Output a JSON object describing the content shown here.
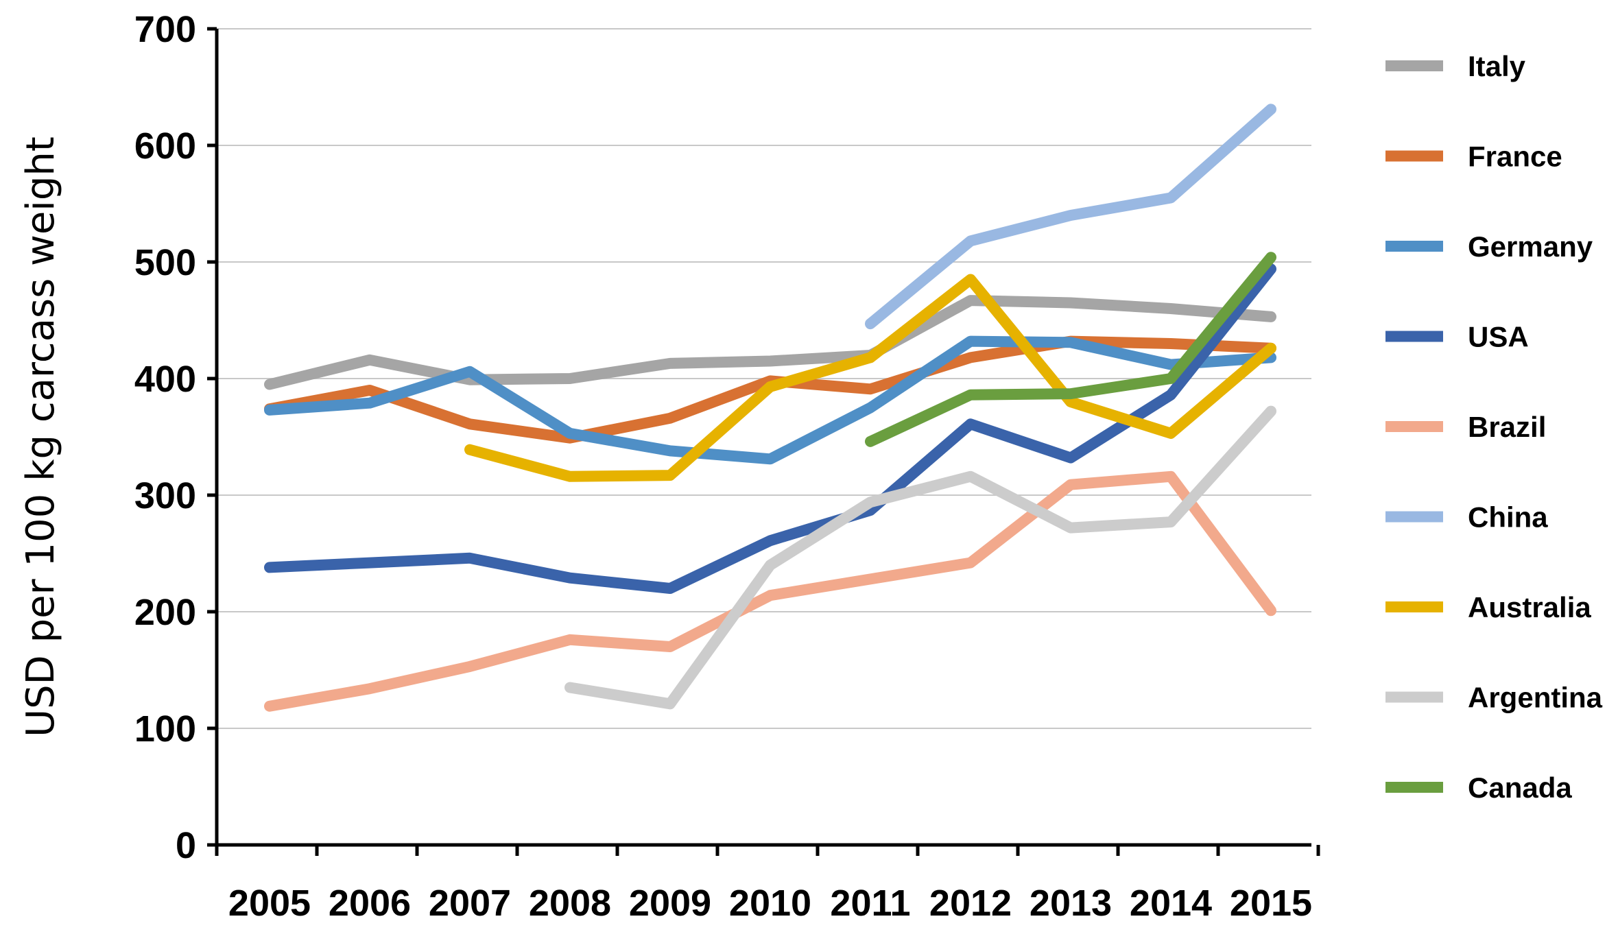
{
  "chart_data": {
    "type": "line",
    "title": "",
    "xlabel": "",
    "ylabel": "USD per 100 kg carcass weight",
    "ylim": [
      0,
      700
    ],
    "yticks": [
      0,
      100,
      200,
      300,
      400,
      500,
      600,
      700
    ],
    "categories": [
      "2005",
      "2006",
      "2007",
      "2008",
      "2009",
      "2010",
      "2011",
      "2012",
      "2013",
      "2014",
      "2015"
    ],
    "grid": true,
    "legend": "right",
    "series": [
      {
        "name": "Italy",
        "color": "#a5a5a5",
        "values": [
          395,
          416,
          399,
          400,
          413,
          415,
          420,
          467,
          465,
          460,
          453
        ]
      },
      {
        "name": "France",
        "color": "#d87132",
        "values": [
          374,
          390,
          361,
          349,
          366,
          398,
          391,
          418,
          432,
          430,
          426
        ]
      },
      {
        "name": "Germany",
        "color": "#4f8fc6",
        "values": [
          373,
          379,
          406,
          353,
          338,
          331,
          375,
          432,
          431,
          412,
          418
        ]
      },
      {
        "name": "USA",
        "color": "#3a63aa",
        "values": [
          238,
          242,
          246,
          229,
          220,
          261,
          287,
          361,
          332,
          386,
          494
        ]
      },
      {
        "name": "Brazil",
        "color": "#f2a98c",
        "values": [
          119,
          134,
          153,
          176,
          170,
          214,
          228,
          242,
          309,
          316,
          201
        ]
      },
      {
        "name": "China",
        "color": "#99b8e2",
        "values": [
          null,
          null,
          null,
          null,
          null,
          null,
          447,
          518,
          540,
          555,
          631
        ]
      },
      {
        "name": "Australia",
        "color": "#e6b200",
        "values": [
          null,
          null,
          339,
          316,
          317,
          393,
          418,
          485,
          380,
          353,
          426
        ]
      },
      {
        "name": "Argentina",
        "color": "#cccccc",
        "values": [
          null,
          null,
          null,
          135,
          121,
          240,
          294,
          316,
          272,
          277,
          372
        ]
      },
      {
        "name": "Canada",
        "color": "#6a9e3f",
        "values": [
          null,
          null,
          null,
          null,
          null,
          null,
          346,
          386,
          387,
          400,
          504
        ]
      }
    ]
  }
}
